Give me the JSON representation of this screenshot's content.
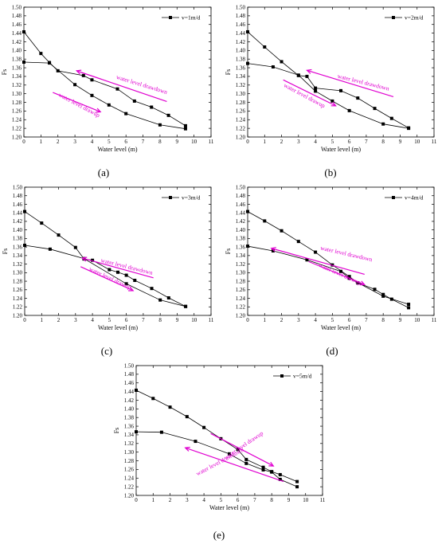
{
  "colors": {
    "annotation": "#e000d0",
    "series": "#000000",
    "marker_shape": "square"
  },
  "chart_data": [
    {
      "id": "a",
      "type": "line",
      "panel_label": "(a)",
      "xlabel": "Water level (m)",
      "ylabel": "Fs",
      "xlim": [
        0,
        11
      ],
      "ylim": [
        1.2,
        1.5
      ],
      "xticks": [
        "0",
        "1",
        "2",
        "3",
        "4",
        "5",
        "6",
        "7",
        "8",
        "9",
        "10",
        "11"
      ],
      "yticks": [
        "1.20",
        "1.22",
        "1.24",
        "1.26",
        "1.28",
        "1.30",
        "1.32",
        "1.34",
        "1.36",
        "1.38",
        "1.40",
        "1.42",
        "1.44",
        "1.46",
        "1.48",
        "1.50"
      ],
      "legend": "v=1m/d",
      "legend_position": "top-right",
      "grid": false,
      "series": [
        {
          "role": "drawdown",
          "x": [
            0,
            1,
            1.5,
            2,
            3.5,
            4,
            5.5,
            6.5,
            7.5,
            8.5,
            9.5
          ],
          "y": [
            1.443,
            1.393,
            1.372,
            1.353,
            1.342,
            1.332,
            1.311,
            1.283,
            1.269,
            1.25,
            1.226
          ]
        },
        {
          "role": "drawup",
          "x": [
            0,
            1.5,
            3,
            4,
            5,
            6,
            8,
            9.5
          ],
          "y": [
            1.373,
            1.371,
            1.321,
            1.296,
            1.274,
            1.254,
            1.228,
            1.219
          ]
        }
      ],
      "annotations": [
        {
          "text": "water level drawdown",
          "rotation": 17,
          "at": [
            6.9,
            1.317
          ]
        },
        {
          "text": "water level drawup",
          "rotation": 28,
          "at": [
            3.2,
            1.27
          ]
        }
      ],
      "arrows": [
        {
          "from": [
            8.4,
            1.282
          ],
          "to": [
            3.1,
            1.353
          ]
        },
        {
          "from": [
            1.7,
            1.303
          ],
          "to": [
            4.5,
            1.258
          ]
        }
      ]
    },
    {
      "id": "b",
      "type": "line",
      "panel_label": "(b)",
      "xlabel": "Water level (m)",
      "ylabel": "Fs",
      "xlim": [
        0,
        11
      ],
      "ylim": [
        1.2,
        1.5
      ],
      "xticks": [
        "0",
        "1",
        "2",
        "3",
        "4",
        "5",
        "6",
        "7",
        "8",
        "9",
        "10",
        "11"
      ],
      "yticks": [
        "1.20",
        "1.22",
        "1.24",
        "1.26",
        "1.28",
        "1.30",
        "1.32",
        "1.34",
        "1.36",
        "1.38",
        "1.40",
        "1.42",
        "1.44",
        "1.46",
        "1.48",
        "1.50"
      ],
      "legend": "v=2m/d",
      "legend_position": "top-right",
      "grid": false,
      "series": [
        {
          "role": "drawdown",
          "x": [
            0,
            1,
            2,
            3,
            3.5,
            4,
            5.5,
            6.5,
            7.5,
            8.5,
            9.5
          ],
          "y": [
            1.443,
            1.408,
            1.374,
            1.342,
            1.34,
            1.313,
            1.307,
            1.29,
            1.266,
            1.243,
            1.221
          ]
        },
        {
          "role": "drawup",
          "x": [
            0,
            1.5,
            3,
            4,
            5,
            6,
            8,
            9.5
          ],
          "y": [
            1.37,
            1.362,
            1.343,
            1.306,
            1.283,
            1.261,
            1.23,
            1.22
          ]
        }
      ],
      "annotations": [
        {
          "text": "water level drawdown",
          "rotation": 14,
          "at": [
            6.8,
            1.322
          ]
        },
        {
          "text": "water level drawup",
          "rotation": 28,
          "at": [
            3.3,
            1.292
          ]
        }
      ],
      "arrows": [
        {
          "from": [
            8.6,
            1.293
          ],
          "to": [
            3.5,
            1.354
          ]
        },
        {
          "from": [
            2.1,
            1.332
          ],
          "to": [
            5.2,
            1.272
          ]
        }
      ]
    },
    {
      "id": "c",
      "type": "line",
      "panel_label": "(c)",
      "xlabel": "Water level (m)",
      "ylabel": "Fs",
      "xlim": [
        0,
        11
      ],
      "ylim": [
        1.2,
        1.5
      ],
      "xticks": [
        "0",
        "1",
        "2",
        "3",
        "4",
        "5",
        "6",
        "7",
        "8",
        "9",
        "10",
        "11"
      ],
      "yticks": [
        "1.20",
        "1.22",
        "1.24",
        "1.26",
        "1.28",
        "1.30",
        "1.32",
        "1.34",
        "1.36",
        "1.38",
        "1.40",
        "1.42",
        "1.44",
        "1.46",
        "1.48",
        "1.50"
      ],
      "legend": "v=3m/d",
      "legend_position": "top-right",
      "grid": false,
      "series": [
        {
          "role": "drawdown",
          "x": [
            0,
            1,
            2,
            3,
            3.5,
            4,
            5,
            5.5,
            6,
            6.5,
            7.5,
            8.5,
            9.5
          ],
          "y": [
            1.443,
            1.416,
            1.388,
            1.359,
            1.332,
            1.329,
            1.307,
            1.301,
            1.294,
            1.282,
            1.263,
            1.241,
            1.221
          ]
        },
        {
          "role": "drawup",
          "x": [
            0,
            1.5,
            3.5,
            6,
            8,
            9.5
          ],
          "y": [
            1.364,
            1.355,
            1.333,
            1.274,
            1.236,
            1.221
          ]
        }
      ],
      "annotations": [
        {
          "text": "water level drawdown",
          "rotation": 14,
          "at": [
            6.0,
            1.31
          ]
        },
        {
          "text": "water level drawup",
          "rotation": 25,
          "at": [
            5.0,
            1.283
          ]
        }
      ],
      "arrows": [
        {
          "from": [
            7.6,
            1.288
          ],
          "to": [
            3.4,
            1.334
          ]
        },
        {
          "from": [
            3.3,
            1.314
          ],
          "to": [
            6.4,
            1.258
          ]
        }
      ]
    },
    {
      "id": "d",
      "type": "line",
      "panel_label": "(d)",
      "xlabel": "Water level (m)",
      "ylabel": "Fs",
      "xlim": [
        0,
        11
      ],
      "ylim": [
        1.2,
        1.5
      ],
      "xticks": [
        "0",
        "1",
        "2",
        "3",
        "4",
        "5",
        "6",
        "7",
        "8",
        "9",
        "10",
        "11"
      ],
      "yticks": [
        "1.20",
        "1.22",
        "1.24",
        "1.26",
        "1.28",
        "1.30",
        "1.32",
        "1.34",
        "1.36",
        "1.38",
        "1.40",
        "1.42",
        "1.44",
        "1.46",
        "1.48",
        "1.50"
      ],
      "legend": "v=4m/d",
      "legend_position": "top-right",
      "grid": false,
      "series": [
        {
          "role": "drawdown",
          "x": [
            0,
            1,
            2,
            3,
            4,
            5,
            6,
            6.5,
            7.5,
            8,
            8.5,
            9.5
          ],
          "y": [
            1.443,
            1.421,
            1.398,
            1.373,
            1.348,
            1.318,
            1.291,
            1.276,
            1.261,
            1.249,
            1.238,
            1.218
          ]
        },
        {
          "role": "drawup",
          "x": [
            0,
            1.5,
            3.5,
            5.5,
            6,
            8,
            9.5
          ],
          "y": [
            1.362,
            1.351,
            1.33,
            1.303,
            1.287,
            1.245,
            1.226
          ]
        }
      ],
      "annotations": [
        {
          "text": "water level drawdown",
          "rotation": 13,
          "at": [
            5.8,
            1.34
          ]
        },
        {
          "text": "water level drawup",
          "rotation": 24,
          "at": [
            5.4,
            1.293
          ]
        }
      ],
      "arrows": [
        {
          "from": [
            6.9,
            1.296
          ],
          "to": [
            1.4,
            1.357
          ]
        },
        {
          "from": [
            3.6,
            1.326
          ],
          "to": [
            6.9,
            1.272
          ]
        }
      ]
    },
    {
      "id": "e",
      "type": "line",
      "panel_label": "(e)",
      "xlabel": "Water level (m)",
      "ylabel": "Fs",
      "xlim": [
        0,
        11
      ],
      "ylim": [
        1.2,
        1.5
      ],
      "xticks": [
        "0",
        "1",
        "2",
        "3",
        "4",
        "5",
        "6",
        "7",
        "8",
        "9",
        "10",
        "11"
      ],
      "yticks": [
        "1.20",
        "1.22",
        "1.24",
        "1.26",
        "1.28",
        "1.30",
        "1.32",
        "1.34",
        "1.36",
        "1.38",
        "1.40",
        "1.42",
        "1.44",
        "1.46",
        "1.48",
        "1.50"
      ],
      "legend": "v=5m/d",
      "legend_position": "top-right",
      "grid": false,
      "series": [
        {
          "role": "drawup",
          "x": [
            0,
            1,
            2,
            3,
            4,
            5,
            6,
            6.5,
            7.5,
            8,
            8.5,
            9.5
          ],
          "y": [
            1.443,
            1.424,
            1.404,
            1.382,
            1.357,
            1.331,
            1.306,
            1.283,
            1.265,
            1.255,
            1.248,
            1.232
          ]
        },
        {
          "role": "drawdown",
          "x": [
            0,
            1.5,
            3.5,
            5.5,
            6.5,
            7.5,
            8,
            8.5,
            9.5
          ],
          "y": [
            1.347,
            1.346,
            1.325,
            1.296,
            1.274,
            1.259,
            1.254,
            1.237,
            1.22
          ]
        }
      ],
      "annotations": [
        {
          "text": "water level drawup",
          "rotation": -34,
          "at": [
            6.4,
            1.312
          ]
        },
        {
          "text": "water level drawdown",
          "rotation": -28,
          "at": [
            5.0,
            1.274
          ]
        }
      ],
      "arrows": [
        {
          "from": [
            4.4,
            1.343
          ],
          "to": [
            8.1,
            1.268
          ]
        },
        {
          "from": [
            8.7,
            1.232
          ],
          "to": [
            2.9,
            1.31
          ]
        }
      ]
    }
  ]
}
